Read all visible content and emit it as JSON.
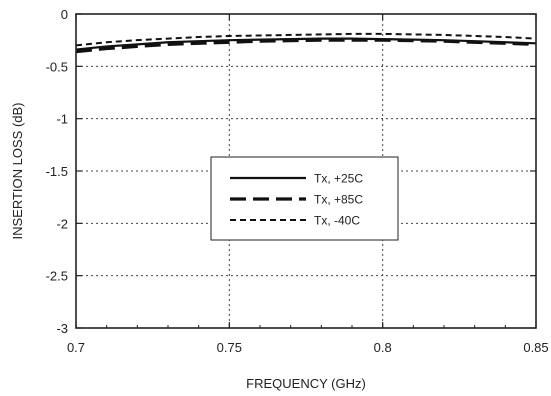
{
  "chart_data": {
    "type": "line",
    "title": "",
    "xlabel": "FREQUENCY (GHz)",
    "ylabel": "INSERTION LOSS (dB)",
    "xlim": [
      0.7,
      0.85
    ],
    "ylim": [
      -3,
      0
    ],
    "xticks": [
      0.7,
      0.75,
      0.8,
      0.85
    ],
    "xtick_labels": [
      "0.7",
      "0.75",
      "0.8",
      "0.85"
    ],
    "yticks": [
      0,
      -0.5,
      -1,
      -1.5,
      -2,
      -2.5,
      -3
    ],
    "ytick_labels": [
      "0",
      "-0.5",
      "-1",
      "-1.5",
      "-2",
      "-2.5",
      "-3"
    ],
    "grid": true,
    "legend_position": "center",
    "series": [
      {
        "name": "Tx, +25C",
        "style": "solid",
        "x": [
          0.7,
          0.71,
          0.72,
          0.73,
          0.74,
          0.75,
          0.76,
          0.77,
          0.78,
          0.79,
          0.8,
          0.81,
          0.82,
          0.83,
          0.84,
          0.85
        ],
        "y": [
          -0.34,
          -0.31,
          -0.29,
          -0.27,
          -0.26,
          -0.25,
          -0.245,
          -0.24,
          -0.235,
          -0.235,
          -0.24,
          -0.245,
          -0.25,
          -0.26,
          -0.27,
          -0.28
        ]
      },
      {
        "name": "Tx, +85C",
        "style": "long-dash",
        "x": [
          0.7,
          0.71,
          0.72,
          0.73,
          0.74,
          0.75,
          0.76,
          0.77,
          0.78,
          0.79,
          0.8,
          0.81,
          0.82,
          0.83,
          0.84,
          0.85
        ],
        "y": [
          -0.36,
          -0.33,
          -0.31,
          -0.29,
          -0.28,
          -0.27,
          -0.26,
          -0.255,
          -0.25,
          -0.25,
          -0.25,
          -0.255,
          -0.26,
          -0.27,
          -0.28,
          -0.29
        ]
      },
      {
        "name": "Tx, -40C",
        "style": "short-dash",
        "x": [
          0.7,
          0.71,
          0.72,
          0.73,
          0.74,
          0.75,
          0.76,
          0.77,
          0.78,
          0.79,
          0.8,
          0.81,
          0.82,
          0.83,
          0.84,
          0.85
        ],
        "y": [
          -0.3,
          -0.27,
          -0.25,
          -0.235,
          -0.22,
          -0.21,
          -0.205,
          -0.2,
          -0.195,
          -0.19,
          -0.19,
          -0.195,
          -0.2,
          -0.21,
          -0.22,
          -0.235
        ]
      }
    ]
  }
}
